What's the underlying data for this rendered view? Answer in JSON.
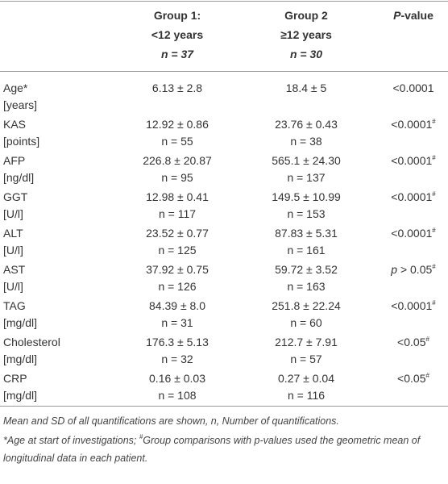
{
  "table": {
    "header": [
      [],
      [
        "Group 1:",
        "<12 years",
        "n = 37"
      ],
      [
        "Group 2",
        "≥12 years",
        "n = 30"
      ],
      {
        "italic": "P",
        "text": "-value"
      }
    ],
    "rows": [
      {
        "label": [
          "Age*",
          "[years]"
        ],
        "group1": [
          "6.13 ± 2.8"
        ],
        "group2": [
          "18.4 ± 5"
        ],
        "p": {
          "text": "<0.0001"
        }
      },
      {
        "label": [
          "KAS",
          "[points]"
        ],
        "group1": [
          "12.92 ± 0.86",
          "n = 55"
        ],
        "group2": [
          "23.76 ± 0.43",
          "n = 38"
        ],
        "p": {
          "text": "<0.0001",
          "sup": "#"
        }
      },
      {
        "label": [
          "AFP",
          "[ng/dl]"
        ],
        "group1": [
          "226.8 ± 20.87",
          "n = 95"
        ],
        "group2": [
          "565.1 ± 24.30",
          "n = 137"
        ],
        "p": {
          "text": "<0.0001",
          "sup": "#"
        }
      },
      {
        "label": [
          "GGT",
          "[U/l]"
        ],
        "group1": [
          "12.98 ± 0.41",
          "n = 117"
        ],
        "group2": [
          "149.5 ± 10.99",
          "n = 153"
        ],
        "p": {
          "text": "<0.0001",
          "sup": "#"
        }
      },
      {
        "label": [
          "ALT",
          "[U/l]"
        ],
        "group1": [
          "23.52 ± 0.77",
          "n = 125"
        ],
        "group2": [
          "87.83 ± 5.31",
          "n = 161"
        ],
        "p": {
          "text": "<0.0001",
          "sup": "#"
        }
      },
      {
        "label": [
          "AST",
          "[U/l]"
        ],
        "group1": [
          "37.92 ± 0.75",
          "n = 126"
        ],
        "group2": [
          "59.72 ± 3.52",
          "n = 163"
        ],
        "p": {
          "italic": "p",
          "text": " > 0.05",
          "sup": "#"
        }
      },
      {
        "label": [
          "TAG",
          "[mg/dl]"
        ],
        "group1": [
          "84.39 ± 8.0",
          "n = 31"
        ],
        "group2": [
          "251.8 ± 22.24",
          "n = 60"
        ],
        "p": {
          "text": "<0.0001",
          "sup": "#"
        }
      },
      {
        "label": [
          "Cholesterol",
          "[mg/dl]"
        ],
        "group1": [
          "176.3 ± 5.13",
          "n = 32"
        ],
        "group2": [
          "212.7 ± 7.91",
          "n = 57"
        ],
        "p": {
          "text": "<0.05",
          "sup": "#"
        }
      },
      {
        "label": [
          "CRP",
          "[mg/dl]"
        ],
        "group1": [
          "0.16 ± 0.03",
          "n = 108"
        ],
        "group2": [
          "0.27 ± 0.04",
          "n = 116"
        ],
        "p": {
          "text": "<0.05",
          "sup": "#"
        }
      }
    ],
    "footnotes": [
      {
        "text": "Mean and SD of all quantifications are shown, n, Number of quantifications."
      },
      {
        "text": "*Age at start of investigations; ",
        "sup": "#",
        "rest": "Group comparisons with p-values used the geometric mean of longitudinal data in each patient."
      }
    ]
  }
}
